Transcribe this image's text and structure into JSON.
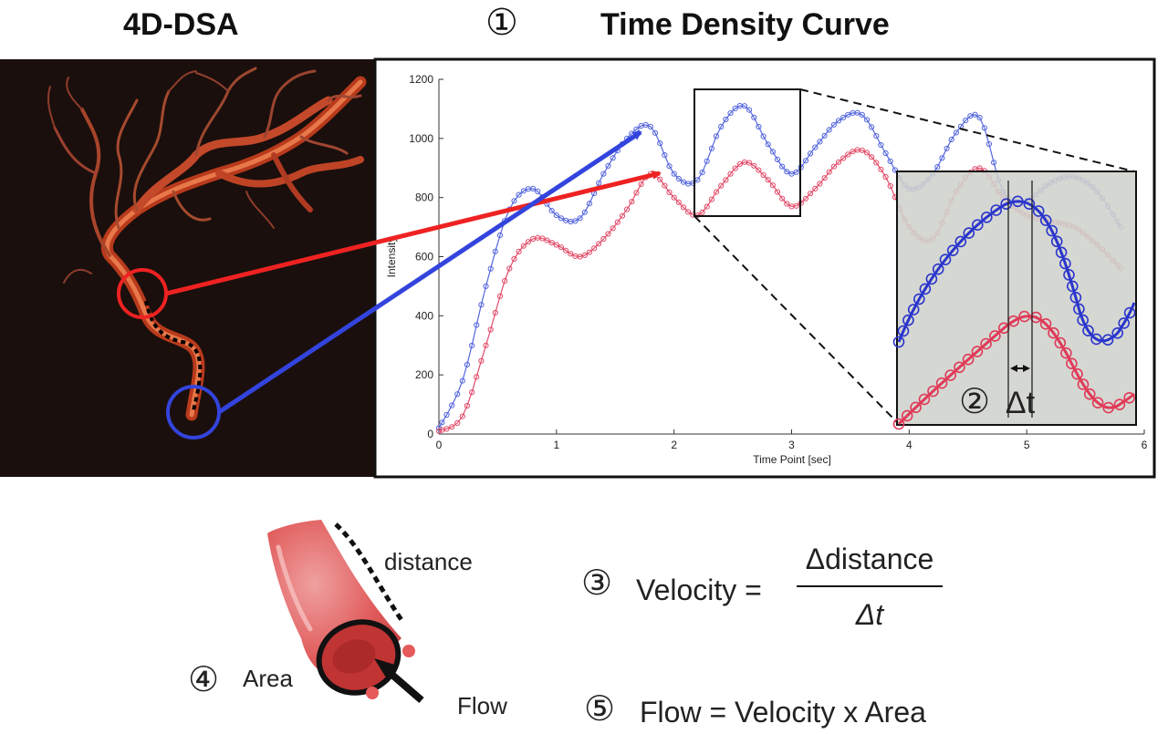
{
  "headings": {
    "dsa": "4D-DSA",
    "step1": "①",
    "tdc": "Time Density Curve"
  },
  "chart_data": {
    "type": "line",
    "xlabel": "Time Point [sec]",
    "ylabel": "Intensity",
    "xlim": [
      0,
      6
    ],
    "ylim": [
      0,
      1200
    ],
    "x_ticks": [
      "0",
      "1",
      "2",
      "3",
      "4",
      "5",
      "6"
    ],
    "y_ticks": [
      "0",
      "200",
      "400",
      "600",
      "800",
      "1000",
      "1200"
    ],
    "series": [
      {
        "color": "#5566dd",
        "x": [
          0,
          0.2,
          0.4,
          0.6,
          0.8,
          1.0,
          1.2,
          1.4,
          1.6,
          1.8,
          2.0,
          2.2,
          2.4,
          2.6,
          2.8,
          3.0,
          3.2,
          3.4,
          3.6,
          3.8,
          4.0,
          4.2,
          4.4,
          4.6,
          4.8,
          5.0,
          5.2,
          5.4,
          5.6,
          5.8
        ],
        "y": [
          20,
          180,
          500,
          760,
          830,
          740,
          730,
          880,
          1000,
          1040,
          880,
          860,
          1040,
          1110,
          980,
          880,
          970,
          1060,
          1080,
          950,
          830,
          880,
          1020,
          1070,
          820,
          790,
          850,
          870,
          820,
          700
        ]
      },
      {
        "color": "#e24c6a",
        "x": [
          0,
          0.2,
          0.4,
          0.6,
          0.8,
          1.0,
          1.2,
          1.4,
          1.6,
          1.8,
          2.0,
          2.2,
          2.4,
          2.6,
          2.8,
          3.0,
          3.2,
          3.4,
          3.6,
          3.8,
          4.0,
          4.2,
          4.4,
          4.6,
          4.8,
          5.0,
          5.2,
          5.4,
          5.6,
          5.8
        ],
        "y": [
          10,
          60,
          300,
          560,
          660,
          640,
          600,
          660,
          760,
          880,
          800,
          740,
          840,
          920,
          860,
          770,
          830,
          920,
          960,
          870,
          700,
          660,
          820,
          900,
          800,
          740,
          720,
          700,
          640,
          560
        ]
      }
    ]
  },
  "inset": {
    "step": "②",
    "delta_label": "Δt"
  },
  "vessel": {
    "distance_label": "distance",
    "area_step": "④",
    "area_label": "Area",
    "flow_label": "Flow"
  },
  "formulas": {
    "velocity_step": "③",
    "velocity_lhs": "Velocity =",
    "velocity_num": "Δdistance",
    "velocity_den": "Δt",
    "flow_step": "⑤",
    "flow_eq": "Flow = Velocity x Area"
  }
}
